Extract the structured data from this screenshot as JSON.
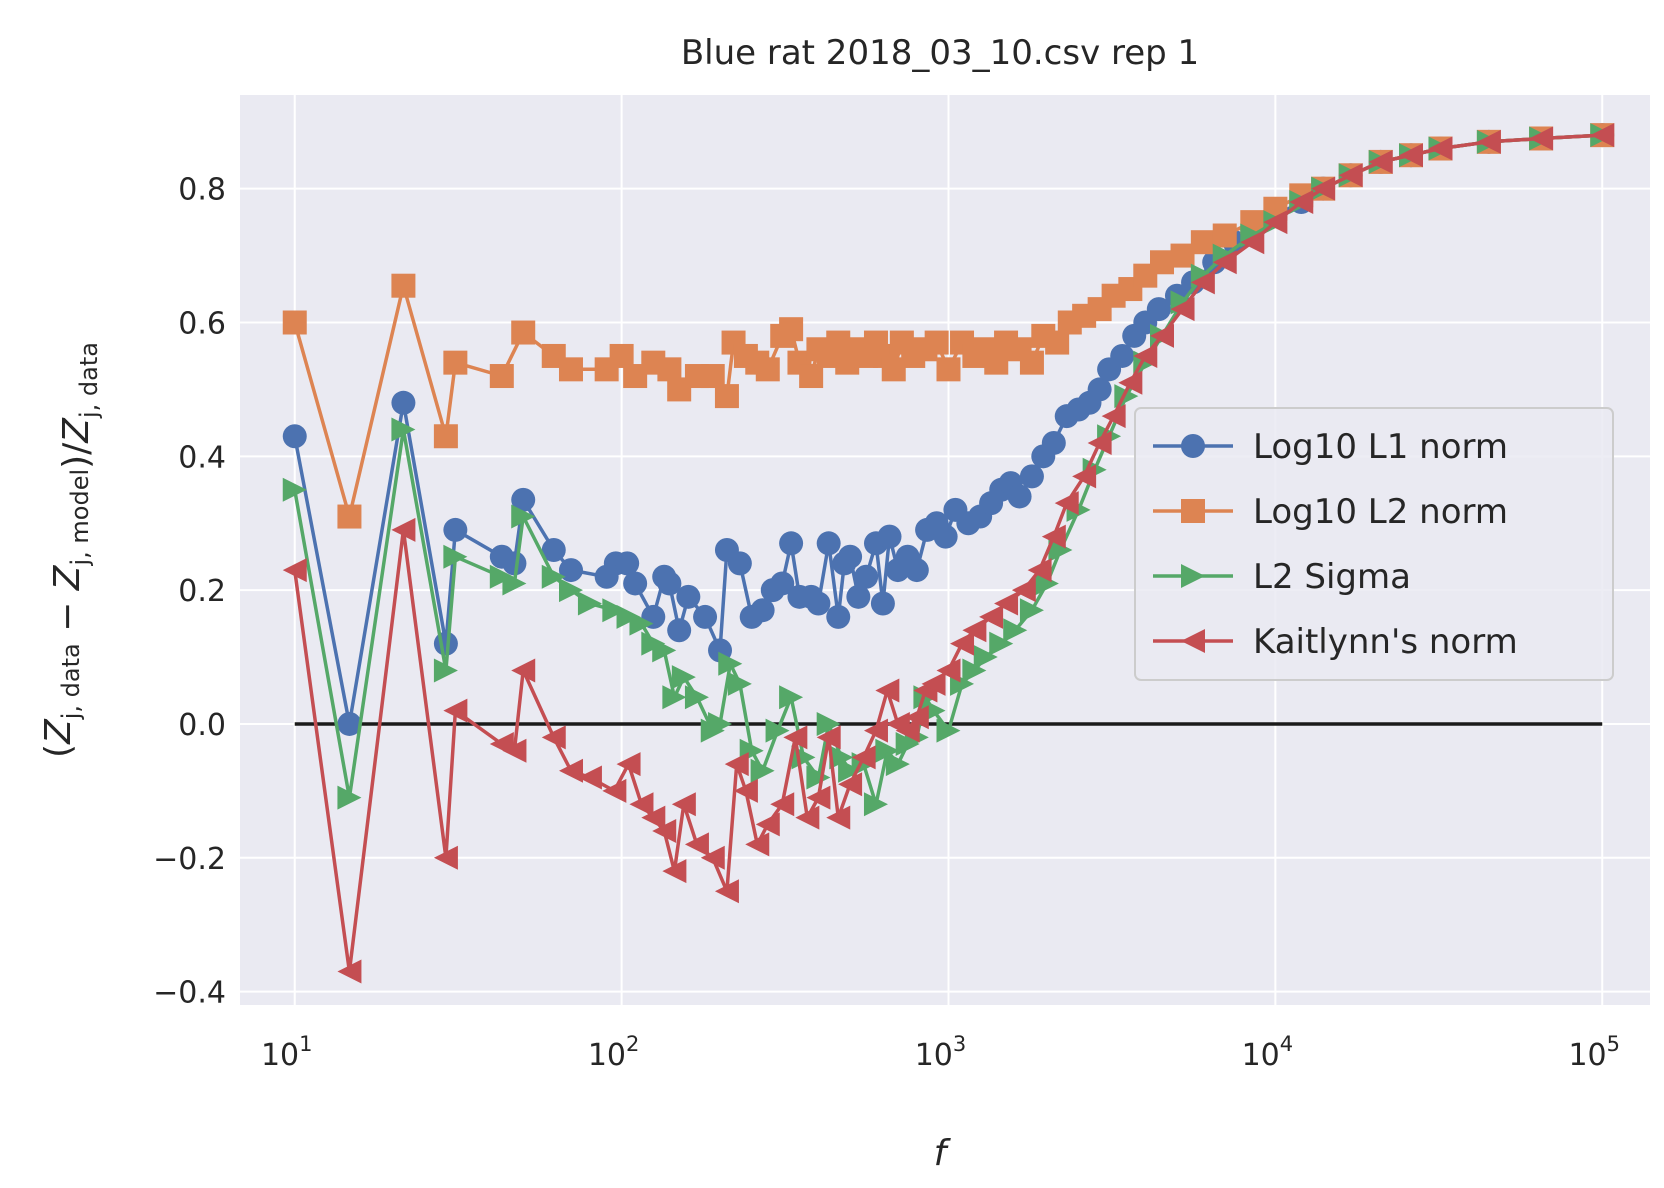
{
  "chart_data": {
    "type": "line",
    "title": "Blue rat 2018_03_10.csv rep 1",
    "xlabel": "f",
    "ylabel": "(Z_{j,data} − Z_{j,model})/Z_{j,data}",
    "xscale": "log",
    "xlim": [
      6.8,
      140000
    ],
    "ylim": [
      -0.42,
      0.94
    ],
    "x_ticks": [
      {
        "base": "10",
        "exp": "1"
      },
      {
        "base": "10",
        "exp": "2"
      },
      {
        "base": "10",
        "exp": "3"
      },
      {
        "base": "10",
        "exp": "4"
      },
      {
        "base": "10",
        "exp": "5"
      }
    ],
    "y_ticks": [
      "−0.4",
      "−0.2",
      "0.0",
      "0.2",
      "0.4",
      "0.6",
      "0.8"
    ],
    "grid": true,
    "legend_position": "center-right",
    "background_color": "#eaeaf2",
    "grid_color": "#ffffff",
    "reference_line": {
      "y": 0,
      "x_range": [
        10,
        100000
      ],
      "color": "#1a1a1a"
    },
    "series": [
      {
        "name": "Log10 L1 norm",
        "color": "#4c72b0",
        "marker": "circle",
        "points": [
          [
            10,
            0.43
          ],
          [
            14.7,
            0.0
          ],
          [
            21.5,
            0.48
          ],
          [
            29,
            0.12
          ],
          [
            31,
            0.29
          ],
          [
            43,
            0.25
          ],
          [
            47,
            0.24
          ],
          [
            50,
            0.335
          ],
          [
            62,
            0.26
          ],
          [
            70,
            0.23
          ],
          [
            90,
            0.22
          ],
          [
            96,
            0.24
          ],
          [
            104,
            0.24
          ],
          [
            110,
            0.21
          ],
          [
            125,
            0.16
          ],
          [
            135,
            0.22
          ],
          [
            140,
            0.21
          ],
          [
            150,
            0.14
          ],
          [
            160,
            0.19
          ],
          [
            180,
            0.16
          ],
          [
            200,
            0.11
          ],
          [
            210,
            0.26
          ],
          [
            230,
            0.24
          ],
          [
            250,
            0.16
          ],
          [
            270,
            0.17
          ],
          [
            290,
            0.2
          ],
          [
            310,
            0.21
          ],
          [
            330,
            0.27
          ],
          [
            350,
            0.19
          ],
          [
            380,
            0.19
          ],
          [
            400,
            0.18
          ],
          [
            430,
            0.27
          ],
          [
            460,
            0.16
          ],
          [
            480,
            0.24
          ],
          [
            500,
            0.25
          ],
          [
            530,
            0.19
          ],
          [
            560,
            0.22
          ],
          [
            600,
            0.27
          ],
          [
            630,
            0.18
          ],
          [
            660,
            0.28
          ],
          [
            700,
            0.23
          ],
          [
            750,
            0.25
          ],
          [
            800,
            0.23
          ],
          [
            860,
            0.29
          ],
          [
            920,
            0.3
          ],
          [
            980,
            0.28
          ],
          [
            1050,
            0.32
          ],
          [
            1150,
            0.3
          ],
          [
            1250,
            0.31
          ],
          [
            1350,
            0.33
          ],
          [
            1450,
            0.35
          ],
          [
            1550,
            0.36
          ],
          [
            1650,
            0.34
          ],
          [
            1800,
            0.37
          ],
          [
            1950,
            0.4
          ],
          [
            2100,
            0.42
          ],
          [
            2300,
            0.46
          ],
          [
            2500,
            0.47
          ],
          [
            2700,
            0.48
          ],
          [
            2900,
            0.5
          ],
          [
            3100,
            0.53
          ],
          [
            3400,
            0.55
          ],
          [
            3700,
            0.58
          ],
          [
            4000,
            0.6
          ],
          [
            4400,
            0.62
          ],
          [
            5000,
            0.64
          ],
          [
            5600,
            0.66
          ],
          [
            6500,
            0.69
          ],
          [
            7500,
            0.72
          ],
          [
            8500,
            0.74
          ],
          [
            10000,
            0.76
          ],
          [
            12000,
            0.78
          ],
          [
            14000,
            0.8
          ],
          [
            17000,
            0.82
          ],
          [
            21000,
            0.84
          ],
          [
            26000,
            0.85
          ],
          [
            32000,
            0.86
          ],
          [
            45000,
            0.87
          ],
          [
            65000,
            0.875
          ],
          [
            100000,
            0.88
          ]
        ]
      },
      {
        "name": "Log10 L2 norm",
        "color": "#dd8452",
        "marker": "square",
        "points": [
          [
            10,
            0.6
          ],
          [
            14.7,
            0.31
          ],
          [
            21.5,
            0.655
          ],
          [
            29,
            0.43
          ],
          [
            31,
            0.54
          ],
          [
            43,
            0.52
          ],
          [
            50,
            0.585
          ],
          [
            62,
            0.55
          ],
          [
            70,
            0.53
          ],
          [
            90,
            0.53
          ],
          [
            100,
            0.55
          ],
          [
            110,
            0.52
          ],
          [
            125,
            0.54
          ],
          [
            140,
            0.53
          ],
          [
            150,
            0.5
          ],
          [
            170,
            0.52
          ],
          [
            190,
            0.52
          ],
          [
            210,
            0.49
          ],
          [
            220,
            0.57
          ],
          [
            240,
            0.55
          ],
          [
            260,
            0.54
          ],
          [
            280,
            0.53
          ],
          [
            310,
            0.58
          ],
          [
            330,
            0.59
          ],
          [
            350,
            0.54
          ],
          [
            380,
            0.52
          ],
          [
            400,
            0.56
          ],
          [
            430,
            0.55
          ],
          [
            460,
            0.57
          ],
          [
            490,
            0.54
          ],
          [
            520,
            0.56
          ],
          [
            560,
            0.55
          ],
          [
            600,
            0.57
          ],
          [
            640,
            0.55
          ],
          [
            680,
            0.53
          ],
          [
            720,
            0.57
          ],
          [
            780,
            0.55
          ],
          [
            850,
            0.56
          ],
          [
            920,
            0.57
          ],
          [
            1000,
            0.53
          ],
          [
            1100,
            0.57
          ],
          [
            1200,
            0.55
          ],
          [
            1300,
            0.56
          ],
          [
            1400,
            0.54
          ],
          [
            1500,
            0.57
          ],
          [
            1650,
            0.56
          ],
          [
            1800,
            0.54
          ],
          [
            1950,
            0.58
          ],
          [
            2150,
            0.57
          ],
          [
            2350,
            0.6
          ],
          [
            2600,
            0.61
          ],
          [
            2900,
            0.62
          ],
          [
            3200,
            0.64
          ],
          [
            3600,
            0.65
          ],
          [
            4000,
            0.67
          ],
          [
            4500,
            0.69
          ],
          [
            5200,
            0.7
          ],
          [
            6000,
            0.72
          ],
          [
            7000,
            0.73
          ],
          [
            8500,
            0.75
          ],
          [
            10000,
            0.77
          ],
          [
            12000,
            0.79
          ],
          [
            14000,
            0.8
          ],
          [
            17000,
            0.82
          ],
          [
            21000,
            0.84
          ],
          [
            26000,
            0.85
          ],
          [
            32000,
            0.86
          ],
          [
            45000,
            0.87
          ],
          [
            65000,
            0.875
          ],
          [
            100000,
            0.88
          ]
        ]
      },
      {
        "name": "L2 Sigma",
        "color": "#55a868",
        "marker": "triangle-right",
        "points": [
          [
            10,
            0.35
          ],
          [
            14.7,
            -0.11
          ],
          [
            21.5,
            0.44
          ],
          [
            29,
            0.08
          ],
          [
            31,
            0.25
          ],
          [
            43,
            0.22
          ],
          [
            47,
            0.21
          ],
          [
            50,
            0.31
          ],
          [
            62,
            0.22
          ],
          [
            70,
            0.2
          ],
          [
            80,
            0.18
          ],
          [
            95,
            0.17
          ],
          [
            105,
            0.16
          ],
          [
            115,
            0.15
          ],
          [
            125,
            0.12
          ],
          [
            135,
            0.11
          ],
          [
            145,
            0.04
          ],
          [
            155,
            0.07
          ],
          [
            170,
            0.04
          ],
          [
            190,
            -0.01
          ],
          [
            200,
            0.0
          ],
          [
            215,
            0.09
          ],
          [
            230,
            0.06
          ],
          [
            250,
            -0.04
          ],
          [
            270,
            -0.07
          ],
          [
            300,
            -0.01
          ],
          [
            330,
            0.04
          ],
          [
            360,
            -0.05
          ],
          [
            400,
            -0.08
          ],
          [
            430,
            0.0
          ],
          [
            470,
            -0.05
          ],
          [
            500,
            -0.07
          ],
          [
            550,
            -0.06
          ],
          [
            600,
            -0.12
          ],
          [
            650,
            -0.04
          ],
          [
            700,
            -0.06
          ],
          [
            750,
            -0.03
          ],
          [
            800,
            -0.02
          ],
          [
            850,
            0.04
          ],
          [
            900,
            0.02
          ],
          [
            1000,
            -0.01
          ],
          [
            1100,
            0.06
          ],
          [
            1200,
            0.08
          ],
          [
            1300,
            0.1
          ],
          [
            1450,
            0.12
          ],
          [
            1600,
            0.14
          ],
          [
            1800,
            0.17
          ],
          [
            2000,
            0.21
          ],
          [
            2200,
            0.26
          ],
          [
            2500,
            0.32
          ],
          [
            2800,
            0.38
          ],
          [
            3100,
            0.43
          ],
          [
            3500,
            0.49
          ],
          [
            4000,
            0.54
          ],
          [
            4500,
            0.58
          ],
          [
            5200,
            0.63
          ],
          [
            6000,
            0.67
          ],
          [
            7000,
            0.7
          ],
          [
            8500,
            0.73
          ],
          [
            10000,
            0.75
          ],
          [
            12000,
            0.78
          ],
          [
            14000,
            0.8
          ],
          [
            17000,
            0.82
          ],
          [
            21000,
            0.84
          ],
          [
            26000,
            0.85
          ],
          [
            32000,
            0.86
          ],
          [
            45000,
            0.87
          ],
          [
            65000,
            0.875
          ],
          [
            100000,
            0.88
          ]
        ]
      },
      {
        "name": "Kaitlynn's norm",
        "color": "#c44e52",
        "marker": "triangle-left",
        "points": [
          [
            10,
            0.23
          ],
          [
            14.7,
            -0.37
          ],
          [
            21.5,
            0.29
          ],
          [
            29,
            -0.2
          ],
          [
            31,
            0.02
          ],
          [
            43,
            -0.03
          ],
          [
            47,
            -0.04
          ],
          [
            50,
            0.08
          ],
          [
            62,
            -0.02
          ],
          [
            70,
            -0.07
          ],
          [
            80,
            -0.08
          ],
          [
            95,
            -0.1
          ],
          [
            105,
            -0.06
          ],
          [
            115,
            -0.12
          ],
          [
            125,
            -0.14
          ],
          [
            135,
            -0.16
          ],
          [
            145,
            -0.22
          ],
          [
            155,
            -0.12
          ],
          [
            170,
            -0.18
          ],
          [
            190,
            -0.2
          ],
          [
            210,
            -0.25
          ],
          [
            225,
            -0.06
          ],
          [
            240,
            -0.1
          ],
          [
            260,
            -0.18
          ],
          [
            280,
            -0.15
          ],
          [
            310,
            -0.12
          ],
          [
            340,
            -0.02
          ],
          [
            370,
            -0.14
          ],
          [
            400,
            -0.11
          ],
          [
            430,
            -0.02
          ],
          [
            460,
            -0.14
          ],
          [
            500,
            -0.09
          ],
          [
            550,
            -0.05
          ],
          [
            600,
            -0.01
          ],
          [
            650,
            0.05
          ],
          [
            700,
            0.0
          ],
          [
            750,
            -0.01
          ],
          [
            800,
            0.01
          ],
          [
            850,
            0.05
          ],
          [
            900,
            0.06
          ],
          [
            1000,
            0.08
          ],
          [
            1100,
            0.12
          ],
          [
            1200,
            0.14
          ],
          [
            1350,
            0.16
          ],
          [
            1500,
            0.18
          ],
          [
            1700,
            0.2
          ],
          [
            1900,
            0.23
          ],
          [
            2100,
            0.28
          ],
          [
            2300,
            0.33
          ],
          [
            2600,
            0.37
          ],
          [
            2900,
            0.42
          ],
          [
            3200,
            0.46
          ],
          [
            3600,
            0.51
          ],
          [
            4000,
            0.55
          ],
          [
            4500,
            0.58
          ],
          [
            5200,
            0.62
          ],
          [
            6000,
            0.66
          ],
          [
            7000,
            0.69
          ],
          [
            8500,
            0.72
          ],
          [
            10000,
            0.75
          ],
          [
            12000,
            0.78
          ],
          [
            14000,
            0.8
          ],
          [
            17000,
            0.82
          ],
          [
            21000,
            0.84
          ],
          [
            26000,
            0.85
          ],
          [
            32000,
            0.86
          ],
          [
            45000,
            0.87
          ],
          [
            65000,
            0.875
          ],
          [
            100000,
            0.88
          ]
        ]
      }
    ]
  }
}
